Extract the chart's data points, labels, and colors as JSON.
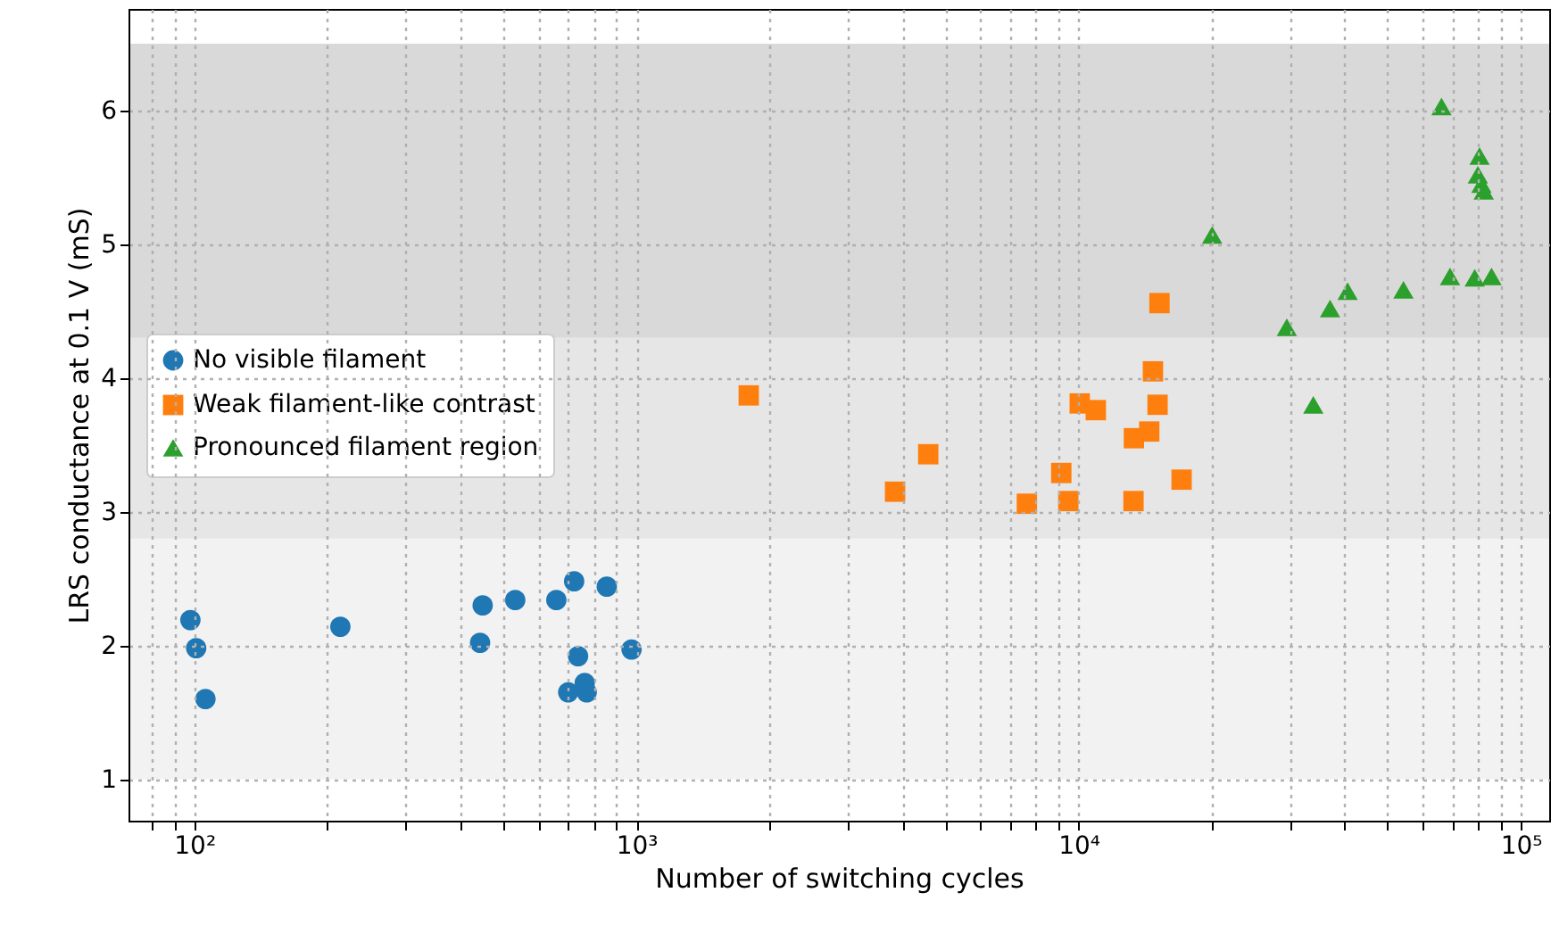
{
  "chart_data": {
    "type": "scatter",
    "xlabel": "Number of switching cycles",
    "ylabel": "LRS conductance at 0.1 V (mS)",
    "log": "x",
    "grid": true,
    "legend": "left",
    "xlim": [
      71,
      116000
    ],
    "ylim": [
      0.69,
      6.76
    ],
    "xticks": [
      {
        "value": 80,
        "label": null
      },
      {
        "value": 90,
        "label": null
      },
      {
        "value": 100,
        "label": "10²"
      },
      {
        "value": 200,
        "label": null
      },
      {
        "value": 300,
        "label": null
      },
      {
        "value": 400,
        "label": null
      },
      {
        "value": 500,
        "label": null
      },
      {
        "value": 600,
        "label": null
      },
      {
        "value": 700,
        "label": null
      },
      {
        "value": 800,
        "label": null
      },
      {
        "value": 900,
        "label": null
      },
      {
        "value": 1000,
        "label": "10³"
      },
      {
        "value": 2000,
        "label": null
      },
      {
        "value": 3000,
        "label": null
      },
      {
        "value": 4000,
        "label": null
      },
      {
        "value": 5000,
        "label": null
      },
      {
        "value": 6000,
        "label": null
      },
      {
        "value": 7000,
        "label": null
      },
      {
        "value": 8000,
        "label": null
      },
      {
        "value": 9000,
        "label": null
      },
      {
        "value": 10000,
        "label": "10⁴"
      },
      {
        "value": 20000,
        "label": null
      },
      {
        "value": 30000,
        "label": null
      },
      {
        "value": 40000,
        "label": null
      },
      {
        "value": 50000,
        "label": null
      },
      {
        "value": 60000,
        "label": null
      },
      {
        "value": 70000,
        "label": null
      },
      {
        "value": 80000,
        "label": null
      },
      {
        "value": 90000,
        "label": null
      },
      {
        "value": 100000,
        "label": "10⁵"
      }
    ],
    "yticks": [
      1,
      2,
      3,
      4,
      5,
      6
    ],
    "bands": [
      {
        "axis": "y",
        "from": 1,
        "to": 2.8,
        "color": "#f2f2f2"
      },
      {
        "axis": "y",
        "from": 2.8,
        "to": 4.3,
        "color": "#e6e6e6"
      },
      {
        "axis": "y",
        "from": 4.3,
        "to": 6.5,
        "color": "#d9d9d9"
      }
    ],
    "series": [
      {
        "name": "No visible filament",
        "color": "#1f77b4",
        "marker": "circle",
        "x": [
          98,
          101,
          106,
          214,
          449,
          443,
          532,
          659,
          723,
          857,
          738,
          701,
          764,
          772,
          975
        ],
        "values": [
          2.19,
          1.98,
          1.6,
          2.14,
          2.3,
          2.02,
          2.34,
          2.34,
          2.48,
          2.44,
          1.92,
          1.65,
          1.72,
          1.65,
          1.97
        ]
      },
      {
        "name": "Weak filament-like contrast",
        "color": "#ff7f0e",
        "marker": "square",
        "x": [
          1795,
          3846,
          4571,
          7640,
          9140,
          9480,
          10060,
          10940,
          13340,
          14450,
          13310,
          15090,
          14730,
          15240,
          17100
        ],
        "values": [
          3.87,
          3.15,
          3.43,
          3.06,
          3.29,
          3.08,
          3.81,
          3.76,
          3.55,
          3.6,
          3.08,
          3.8,
          4.05,
          4.56,
          3.24
        ]
      },
      {
        "name": "Pronounced filament region",
        "color": "#2ca02c",
        "marker": "triangle",
        "x": [
          20050,
          29580,
          33960,
          37050,
          40600,
          54300,
          66200,
          69200,
          78700,
          85900,
          80700,
          80000,
          81500,
          82500
        ],
        "values": [
          5.07,
          4.38,
          3.8,
          4.52,
          4.65,
          4.66,
          6.03,
          4.76,
          4.75,
          4.76,
          5.66,
          5.52,
          5.45,
          5.4
        ]
      }
    ]
  }
}
